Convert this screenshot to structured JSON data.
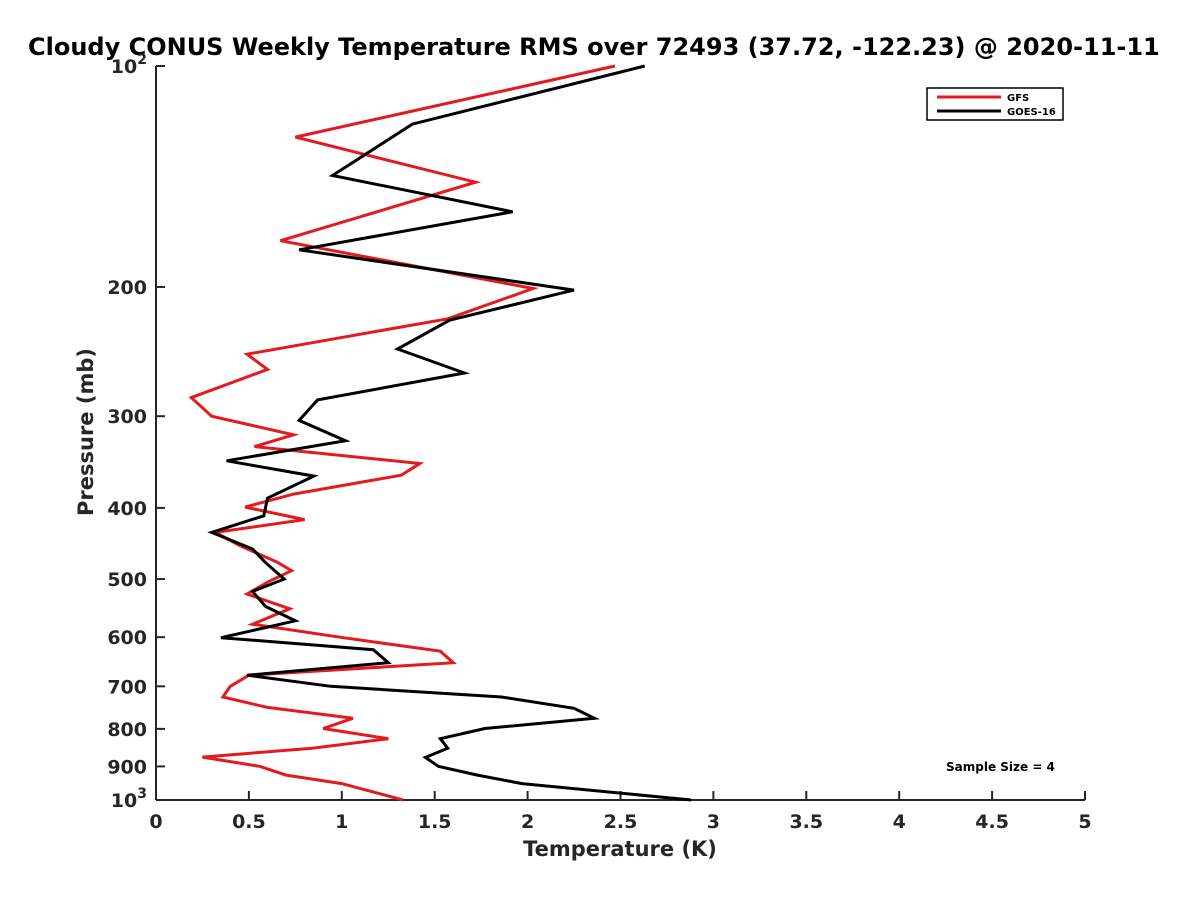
{
  "chart_data": {
    "type": "line",
    "title": "Cloudy CONUS Weekly Temperature RMS over 72493 (37.72, -122.23) @ 2020-11-11",
    "xlabel": "Temperature (K)",
    "ylabel": "Pressure (mb)",
    "xlim": [
      0,
      5
    ],
    "ylim": [
      100,
      1000
    ],
    "y_scale": "log",
    "y_reversed": true,
    "grid": false,
    "legend_position": "top-right",
    "x_ticks": [
      0,
      0.5,
      1,
      1.5,
      2,
      2.5,
      3,
      3.5,
      4,
      4.5,
      5
    ],
    "x_tick_labels": [
      "0",
      "0.5",
      "1",
      "1.5",
      "2",
      "2.5",
      "3",
      "3.5",
      "4",
      "4.5",
      "5"
    ],
    "y_ticks": [
      {
        "value": 100,
        "base": "10",
        "exp": "2",
        "label": ""
      },
      {
        "value": 200,
        "label": "200"
      },
      {
        "value": 300,
        "label": "300"
      },
      {
        "value": 400,
        "label": "400"
      },
      {
        "value": 500,
        "label": "500"
      },
      {
        "value": 600,
        "label": "600"
      },
      {
        "value": 700,
        "label": "700"
      },
      {
        "value": 800,
        "label": "800"
      },
      {
        "value": 900,
        "label": "900"
      },
      {
        "value": 1000,
        "base": "10",
        "exp": "3",
        "label": ""
      }
    ],
    "series": [
      {
        "name": "GFS",
        "color": "#e41a1c",
        "points": [
          [
            2.47,
            100
          ],
          [
            0.75,
            125
          ],
          [
            1.72,
            144
          ],
          [
            0.67,
            173
          ],
          [
            2.03,
            201
          ],
          [
            1.57,
            221
          ],
          [
            0.49,
            247
          ],
          [
            0.6,
            259
          ],
          [
            0.19,
            283
          ],
          [
            0.3,
            300
          ],
          [
            0.74,
            318
          ],
          [
            0.53,
            330
          ],
          [
            1.42,
            348
          ],
          [
            1.32,
            361
          ],
          [
            0.74,
            383
          ],
          [
            0.48,
            399
          ],
          [
            0.8,
            415
          ],
          [
            0.32,
            432
          ],
          [
            0.45,
            450
          ],
          [
            0.55,
            462
          ],
          [
            0.65,
            474
          ],
          [
            0.73,
            487
          ],
          [
            0.6,
            505
          ],
          [
            0.49,
            524
          ],
          [
            0.72,
            549
          ],
          [
            0.52,
            576
          ],
          [
            0.99,
            600
          ],
          [
            1.53,
            627
          ],
          [
            1.6,
            650
          ],
          [
            0.5,
            676
          ],
          [
            0.4,
            700
          ],
          [
            0.36,
            724
          ],
          [
            0.6,
            748
          ],
          [
            1.06,
            774
          ],
          [
            0.9,
            799
          ],
          [
            1.25,
            825
          ],
          [
            0.84,
            850
          ],
          [
            0.25,
            874
          ],
          [
            0.56,
            900
          ],
          [
            0.7,
            925
          ],
          [
            1.0,
            950
          ],
          [
            1.33,
            1000
          ]
        ]
      },
      {
        "name": "GOES-16",
        "color": "#000000",
        "points": [
          [
            2.63,
            100
          ],
          [
            1.38,
            120
          ],
          [
            0.95,
            141
          ],
          [
            1.92,
            158
          ],
          [
            0.77,
            178
          ],
          [
            2.25,
            202
          ],
          [
            1.58,
            222
          ],
          [
            1.3,
            243
          ],
          [
            1.66,
            262
          ],
          [
            0.87,
            285
          ],
          [
            0.77,
            304
          ],
          [
            1.02,
            324
          ],
          [
            0.38,
            345
          ],
          [
            0.85,
            362
          ],
          [
            0.6,
            388
          ],
          [
            0.58,
            410
          ],
          [
            0.3,
            432
          ],
          [
            0.52,
            455
          ],
          [
            0.59,
            475
          ],
          [
            0.69,
            500
          ],
          [
            0.52,
            520
          ],
          [
            0.59,
            545
          ],
          [
            0.75,
            570
          ],
          [
            0.35,
            601
          ],
          [
            1.17,
            624
          ],
          [
            1.25,
            650
          ],
          [
            0.49,
            676
          ],
          [
            0.94,
            700
          ],
          [
            1.86,
            724
          ],
          [
            2.25,
            750
          ],
          [
            2.36,
            774
          ],
          [
            1.77,
            799
          ],
          [
            1.53,
            825
          ],
          [
            1.57,
            850
          ],
          [
            1.45,
            875
          ],
          [
            1.52,
            900
          ],
          [
            1.73,
            925
          ],
          [
            1.97,
            950
          ],
          [
            2.88,
            1000
          ]
        ]
      }
    ],
    "annotation": "Sample Size = 4"
  }
}
